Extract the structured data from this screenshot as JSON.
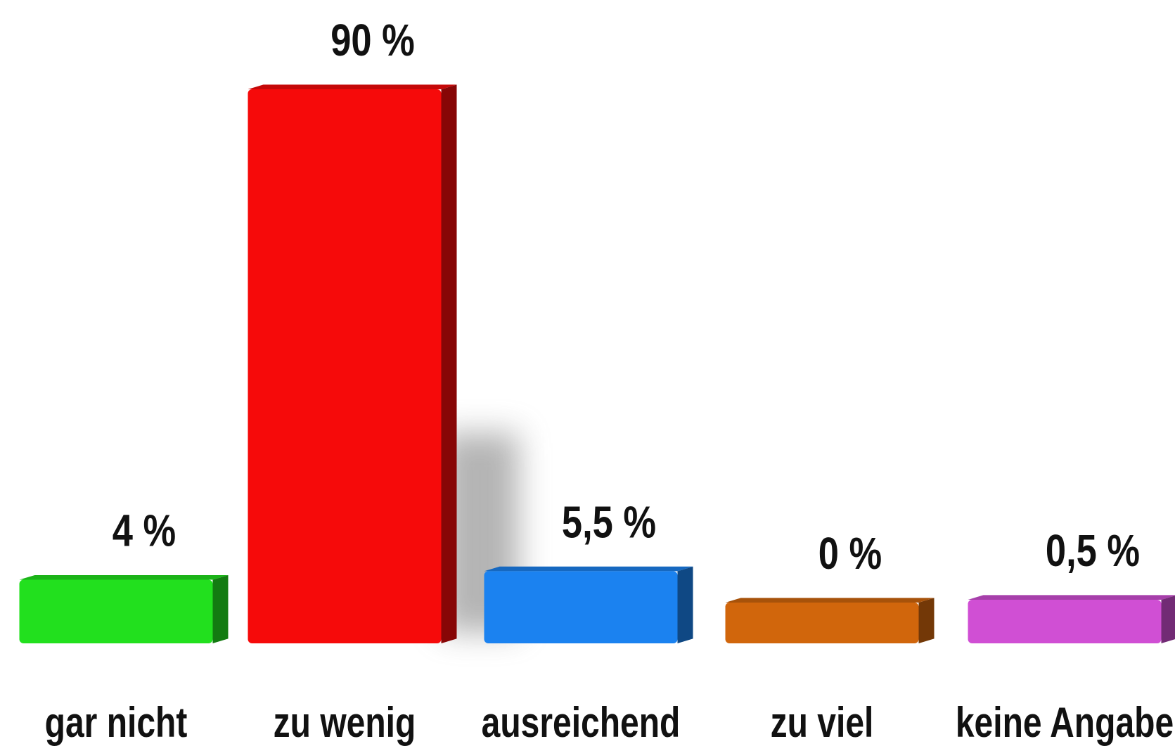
{
  "chart_data": {
    "type": "bar",
    "categories": [
      "gar nicht",
      "zu wenig",
      "ausreichend",
      "zu viel",
      "keine Angabe"
    ],
    "values": [
      4,
      90,
      5.5,
      0,
      0.5
    ],
    "value_labels": [
      "4 %",
      "90 %",
      "5,5 %",
      "0 %",
      "0,5 %"
    ],
    "colors": [
      "#22e01e",
      "#f60a0a",
      "#1b82f0",
      "#d1660c",
      "#d04fd4"
    ]
  }
}
